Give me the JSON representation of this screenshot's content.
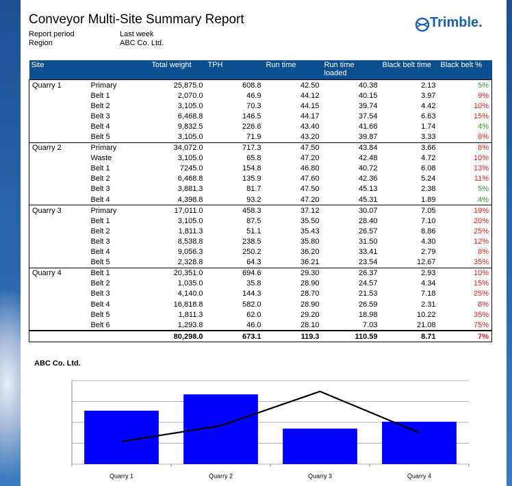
{
  "header": {
    "title": "Conveyor Multi-Site Summary Report",
    "logo": "Trimble.",
    "fields": [
      {
        "label": "Report period",
        "value": "Last week"
      },
      {
        "label": "Region",
        "value": "ABC Co. Ltd."
      }
    ]
  },
  "table": {
    "columns": [
      "Site",
      "",
      "Total weight",
      "TPH",
      "Run time",
      "Run time loaded",
      "Black belt time",
      "Black belt %"
    ],
    "groups": [
      {
        "site": "Quarry 1",
        "rows": [
          {
            "area": "Primary",
            "values": [
              "25,875.0",
              "608.8",
              "42.50",
              "40.38",
              "2.13",
              "5%"
            ],
            "pct_color": "#2e9e2e"
          },
          {
            "area": "Belt 1",
            "values": [
              "2,070.0",
              "46.9",
              "44.12",
              "40.15",
              "3.97",
              "9%"
            ],
            "pct_color": "#e8201c"
          },
          {
            "area": "Belt 2",
            "values": [
              "3,105.0",
              "70.3",
              "44.15",
              "39.74",
              "4.42",
              "10%"
            ],
            "pct_color": "#e8201c"
          },
          {
            "area": "Belt 3",
            "values": [
              "6,468.8",
              "146.5",
              "44.17",
              "37.54",
              "6.63",
              "15%"
            ],
            "pct_color": "#e8201c"
          },
          {
            "area": "Belt 4",
            "values": [
              "9,832.5",
              "226.6",
              "43.40",
              "41.66",
              "1.74",
              "4%"
            ],
            "pct_color": "#2e9e2e"
          },
          {
            "area": "Belt 5",
            "values": [
              "3,105.0",
              "71.9",
              "43.20",
              "39.87",
              "3.33",
              "8%"
            ],
            "pct_color": "#e8201c"
          }
        ]
      },
      {
        "site": "Quarry 2",
        "rows": [
          {
            "area": "Primary",
            "values": [
              "34,072.0",
              "717.3",
              "47.50",
              "43.84",
              "3.66",
              "8%"
            ],
            "pct_color": "#e8201c"
          },
          {
            "area": "Waste",
            "values": [
              "3,105.0",
              "65.8",
              "47.20",
              "42.48",
              "4.72",
              "10%"
            ],
            "pct_color": "#e8201c"
          },
          {
            "area": "Belt 1",
            "values": [
              "7245.0",
              "154.8",
              "46.80",
              "40.72",
              "6.08",
              "13%"
            ],
            "pct_color": "#e8201c"
          },
          {
            "area": "Belt 2",
            "values": [
              "6,468.8",
              "135.9",
              "47.60",
              "42.36",
              "5.24",
              "11%"
            ],
            "pct_color": "#e8201c"
          },
          {
            "area": "Belt 3",
            "values": [
              "3,881.3",
              "81.7",
              "47.50",
              "45.13",
              "2.38",
              "5%"
            ],
            "pct_color": "#2e9e2e"
          },
          {
            "area": "Belt 4",
            "values": [
              "4,398.8",
              "93.2",
              "47.20",
              "45.31",
              "1.89",
              "4%"
            ],
            "pct_color": "#2e9e2e"
          }
        ]
      },
      {
        "site": "Quarry 3",
        "rows": [
          {
            "area": "Primary",
            "values": [
              "17,011.0",
              "458.3",
              "37.12",
              "30.07",
              "7.05",
              "19%"
            ],
            "pct_color": "#e8201c"
          },
          {
            "area": "Belt 1",
            "values": [
              "3,105.0",
              "87.5",
              "35.50",
              "28.40",
              "7.10",
              "20%"
            ],
            "pct_color": "#e8201c"
          },
          {
            "area": "Belt 2",
            "values": [
              "1,811.3",
              "51.1",
              "35.43",
              "26.57",
              "8.86",
              "25%"
            ],
            "pct_color": "#e8201c"
          },
          {
            "area": "Belt 3",
            "values": [
              "8,538.8",
              "238.5",
              "35.80",
              "31.50",
              "4.30",
              "12%"
            ],
            "pct_color": "#e8201c"
          },
          {
            "area": "Belt 4",
            "values": [
              "9,056.3",
              "250.2",
              "36.20",
              "33.41",
              "2.79",
              "8%"
            ],
            "pct_color": "#e8201c"
          },
          {
            "area": "Belt 5",
            "values": [
              "2,328.8",
              "64.3",
              "36.21",
              "23.54",
              "12.67",
              "35%"
            ],
            "pct_color": "#e8201c"
          }
        ]
      },
      {
        "site": "Quarry 4",
        "rows": [
          {
            "area": "Belt 1",
            "values": [
              "20,351.0",
              "694.6",
              "29.30",
              "26.37",
              "2.93",
              "10%"
            ],
            "pct_color": "#e8201c"
          },
          {
            "area": "Belt 2",
            "values": [
              "1,035.0",
              "35.8",
              "28.90",
              "24.57",
              "4.34",
              "15%"
            ],
            "pct_color": "#e8201c"
          },
          {
            "area": "Belt 3",
            "values": [
              "4,140.0",
              "144.3",
              "28.70",
              "21.53",
              "7.18",
              "25%"
            ],
            "pct_color": "#e8201c"
          },
          {
            "area": "Belt 4",
            "values": [
              "16,818.8",
              "582.0",
              "28.90",
              "26.59",
              "2.31",
              "8%"
            ],
            "pct_color": "#e8201c"
          },
          {
            "area": "Belt 5",
            "values": [
              "1,811.3",
              "62.0",
              "29.20",
              "18.98",
              "10.22",
              "35%"
            ],
            "pct_color": "#e8201c"
          },
          {
            "area": "Belt 6",
            "values": [
              "1,293.8",
              "46.0",
              "28.10",
              "7.03",
              "21.08",
              "75%"
            ],
            "pct_color": "#e8201c"
          }
        ]
      }
    ],
    "total": {
      "values": [
        "80,298.0",
        "673.1",
        "119.3",
        "110.59",
        "8.71",
        "7%"
      ],
      "pct_color": "#e8201c"
    }
  },
  "chart_data": {
    "type": "bar",
    "title": "ABC Co. Ltd.",
    "categories": [
      "Quarry 1",
      "Quarry 2",
      "Quarry 3",
      "Quarry 4"
    ],
    "series": [
      {
        "type": "bar",
        "color": "#0000ff",
        "values": [
          2.56,
          3.34,
          1.7,
          2.03
        ]
      },
      {
        "type": "line",
        "color": "#000000",
        "values": [
          1.08,
          1.84,
          3.48,
          1.5
        ]
      }
    ],
    "ylim": [
      0,
      4
    ],
    "yticks": [
      0,
      1,
      2,
      3,
      4
    ],
    "grid": true
  }
}
